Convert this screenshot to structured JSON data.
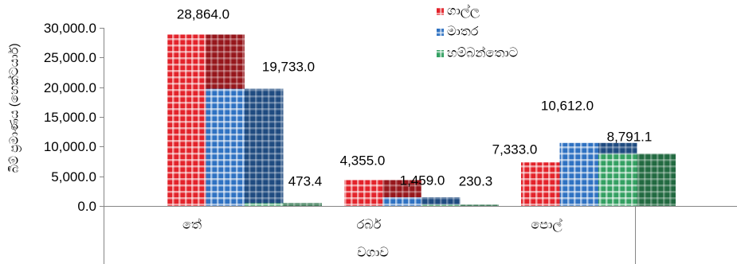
{
  "chart_data": {
    "type": "bar",
    "categories": [
      "තේ",
      "රබර්",
      "පොල්"
    ],
    "series": [
      {
        "name": "ගාල්ල",
        "values": [
          28864.0,
          4355.0,
          7333.0
        ],
        "color": "#e3232b"
      },
      {
        "name": "මාතර",
        "values": [
          19733.0,
          1459.0,
          10612.0
        ],
        "color": "#2f72c2"
      },
      {
        "name": "හම්බන්තොට",
        "values": [
          473.4,
          230.3,
          8791.1
        ],
        "color": "#34a062"
      }
    ],
    "data_labels": [
      [
        "28,864.0",
        "4,355.0",
        "7,333.0"
      ],
      [
        "19,733.0",
        "1,459.0",
        "10,612.0"
      ],
      [
        "473.4",
        "230.3",
        "8,791.1"
      ]
    ],
    "xlabel": "වගාව",
    "ylabel": "බිම් ප්‍රමාණය (හෙක්ටයාර්)",
    "ylim": [
      0,
      30000
    ],
    "yticks": [
      0,
      5000,
      10000,
      15000,
      20000,
      25000,
      30000
    ],
    "ytick_labels": [
      "0.0",
      "5,000.0",
      "10,000.0",
      "15,000.0",
      "20,000.0",
      "25,000.0",
      "30,000.0"
    ],
    "grid": false,
    "legend_position": "top"
  }
}
